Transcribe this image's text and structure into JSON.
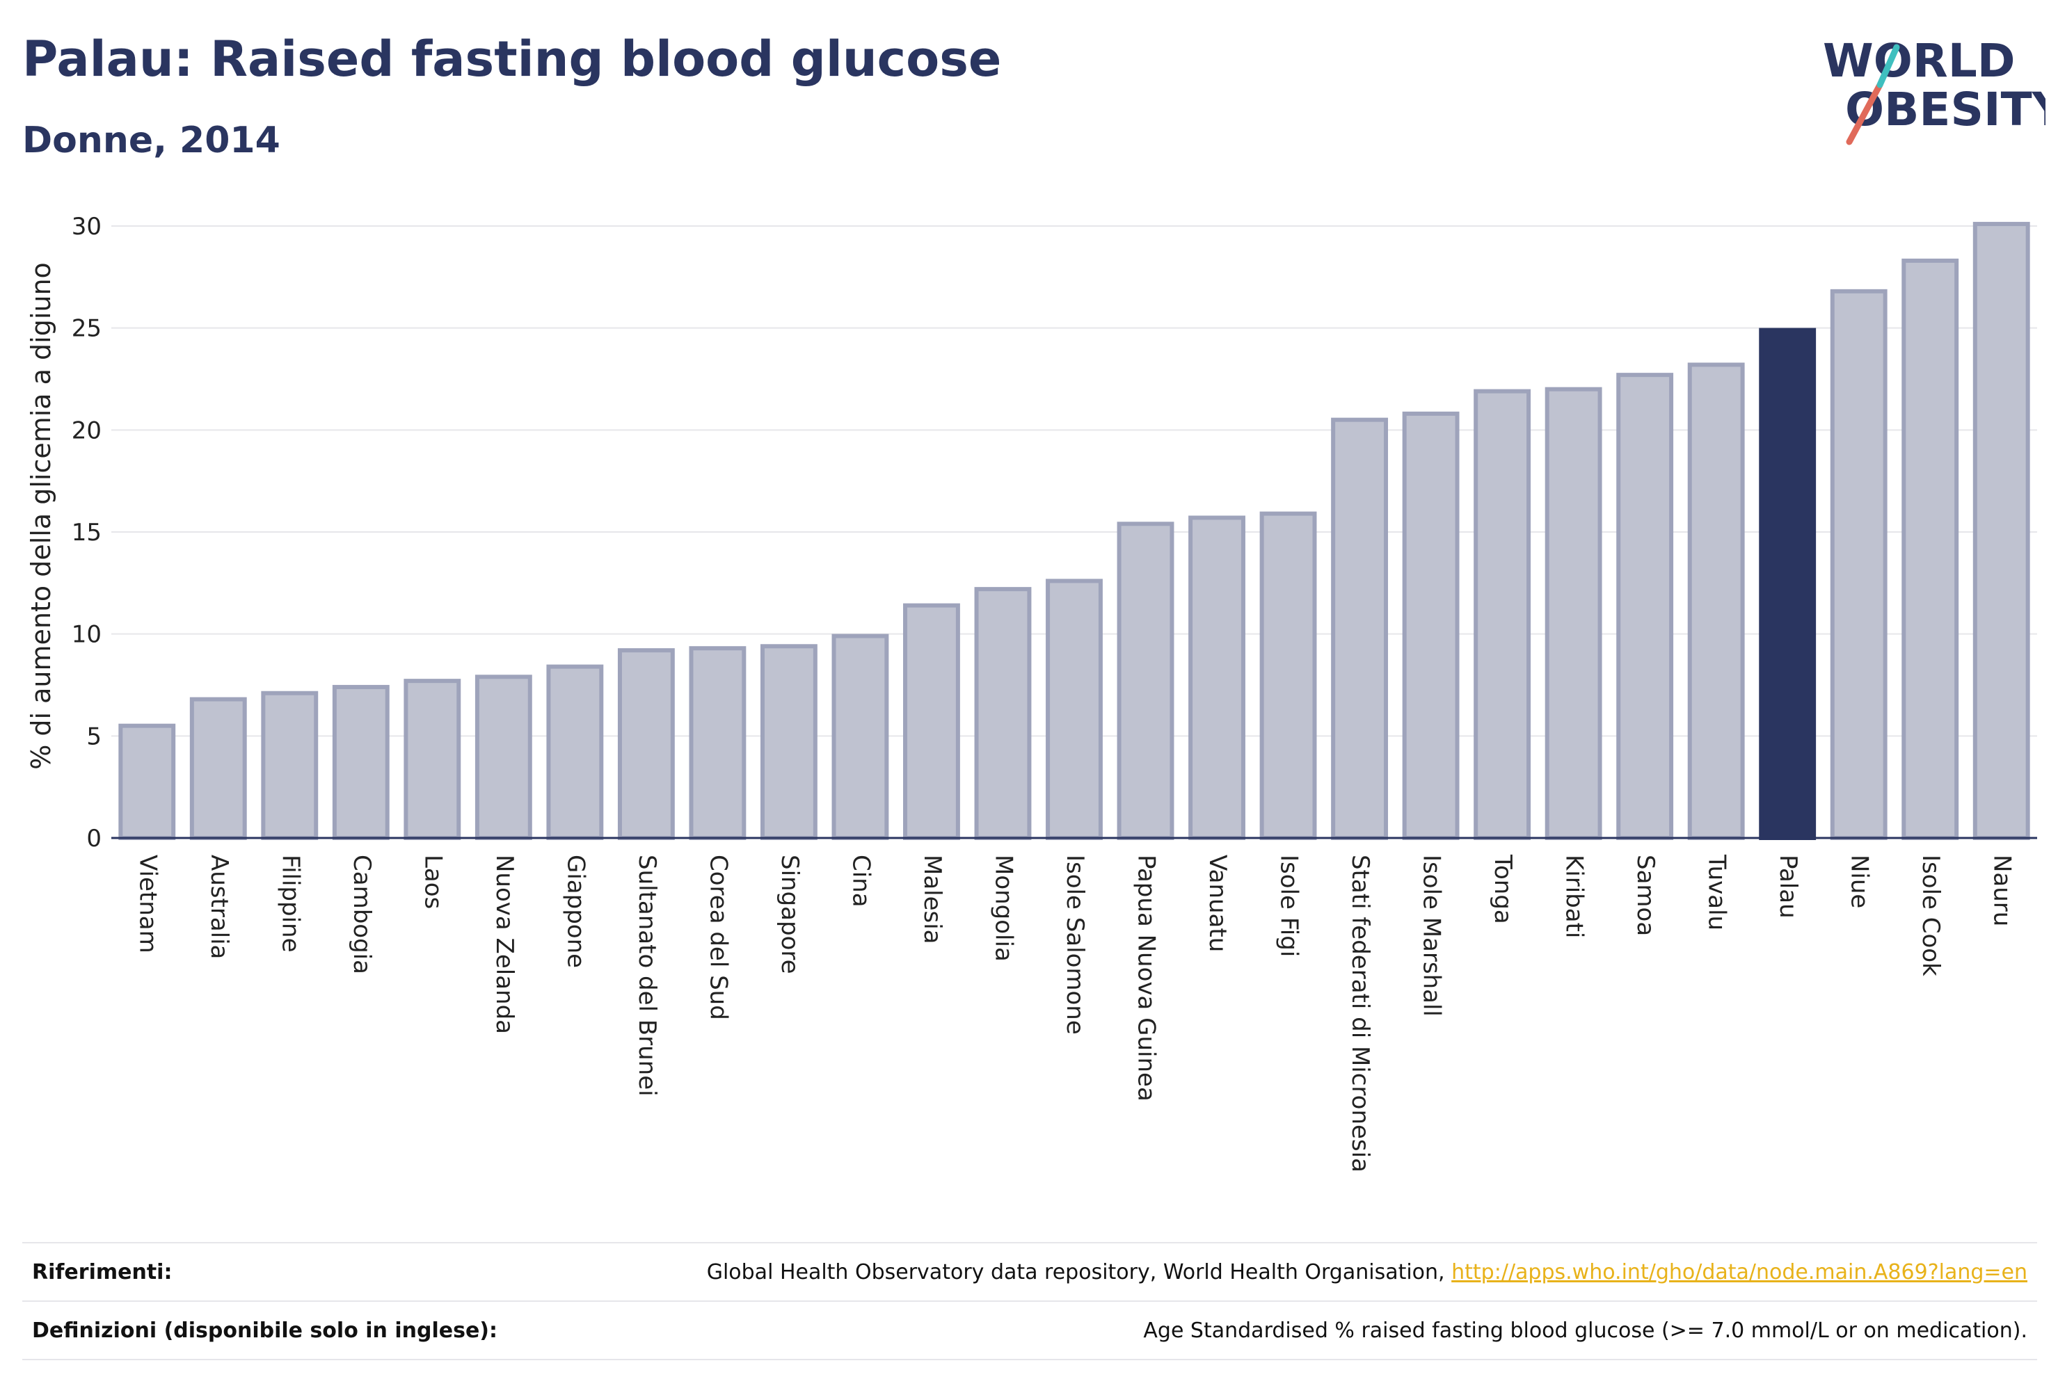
{
  "header": {
    "title": "Palau: Raised fasting blood glucose",
    "subtitle": "Donne, 2014"
  },
  "logo": {
    "line1": "WORLD",
    "line2": "OBESITY",
    "colors": {
      "text": "#2a3560",
      "slash_red": "#e06a5a",
      "slash_teal": "#3fbfbf"
    }
  },
  "colors": {
    "bar_default": "#bfc2d0",
    "bar_default_border": "#9ea3bb",
    "bar_highlight": "#2a3560",
    "grid": "#e6e6ea",
    "axis": "#2a3560"
  },
  "chart_data": {
    "type": "bar",
    "ylabel": "% di aumento della glicemia a digiuno",
    "ylim": [
      0,
      30
    ],
    "yticks": [
      0,
      5,
      10,
      15,
      20,
      25,
      30
    ],
    "grid": true,
    "highlight": "Palau",
    "categories": [
      "Vietnam",
      "Australia",
      "Filippine",
      "Cambogia",
      "Laos",
      "Nuova Zelanda",
      "Giappone",
      "Sultanato del Brunei",
      "Corea del Sud",
      "Singapore",
      "Cina",
      "Malesia",
      "Mongolia",
      "Isole Salomone",
      "Papua Nuova Guinea",
      "Vanuatu",
      "Isole Figi",
      "Stati federati di Micronesia",
      "Isole Marshall",
      "Tonga",
      "Kiribati",
      "Samoa",
      "Tuvalu",
      "Palau",
      "Niue",
      "Isole Cook",
      "Nauru"
    ],
    "values": [
      5.5,
      6.8,
      7.1,
      7.4,
      7.7,
      7.9,
      8.4,
      9.2,
      9.3,
      9.4,
      9.9,
      11.4,
      12.2,
      12.6,
      15.4,
      15.7,
      15.9,
      20.5,
      20.8,
      21.9,
      22.0,
      22.7,
      23.2,
      24.9,
      26.8,
      28.3,
      30.1
    ]
  },
  "footer": {
    "references_label": "Riferimenti:",
    "references_text": "Global Health Observatory data repository, World Health Organisation,",
    "references_link": "http://apps.who.int/gho/data/node.main.A869?lang=en",
    "definitions_label": "Definizioni (disponibile solo in inglese):",
    "definitions_text": "Age Standardised % raised fasting blood glucose (>= 7.0 mmol/L or on medication)."
  }
}
